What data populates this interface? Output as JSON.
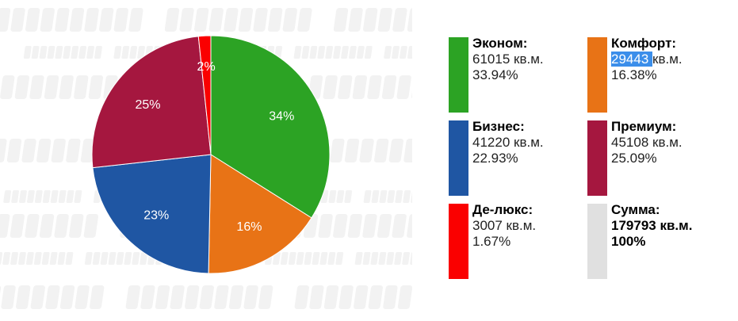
{
  "watermark": "СтройОбзор",
  "chart_data": {
    "type": "pie",
    "unit": "кв.м.",
    "categories": [
      "Эконом",
      "Комфорт",
      "Бизнес",
      "Премиум",
      "Де-люкс"
    ],
    "values": [
      61015,
      29443,
      41220,
      45108,
      3007
    ],
    "percent_labels": [
      "34%",
      "16%",
      "23%",
      "25%",
      "2%"
    ],
    "colors": [
      "#2ca324",
      "#e87316",
      "#1f56a3",
      "#a5173f",
      "#fa0000"
    ],
    "start": "top",
    "direction": "clockwise"
  },
  "legend": [
    {
      "label": "Эконом:",
      "value": "61015",
      "unit": "кв.м.",
      "percent": "33.94%",
      "color": "#2ca324"
    },
    {
      "label": "Комфорт:",
      "value": "29443",
      "unit": "кв.м.",
      "percent": "16.38%",
      "color": "#e87316"
    },
    {
      "label": "Бизнес:",
      "value": "41220",
      "unit": "кв.м.",
      "percent": "22.93%",
      "color": "#1f56a3"
    },
    {
      "label": "Премиум:",
      "value": "45108",
      "unit": "кв.м.",
      "percent": "25.09%",
      "color": "#a5173f"
    },
    {
      "label": "Де-люкс:",
      "value": "3007",
      "unit": "кв.м.",
      "percent": "1.67%",
      "color": "#fa0000"
    },
    {
      "label": "Сумма:",
      "value": "179793",
      "unit": "кв.м.",
      "percent": "100%",
      "color": "#e0e0e0"
    }
  ]
}
